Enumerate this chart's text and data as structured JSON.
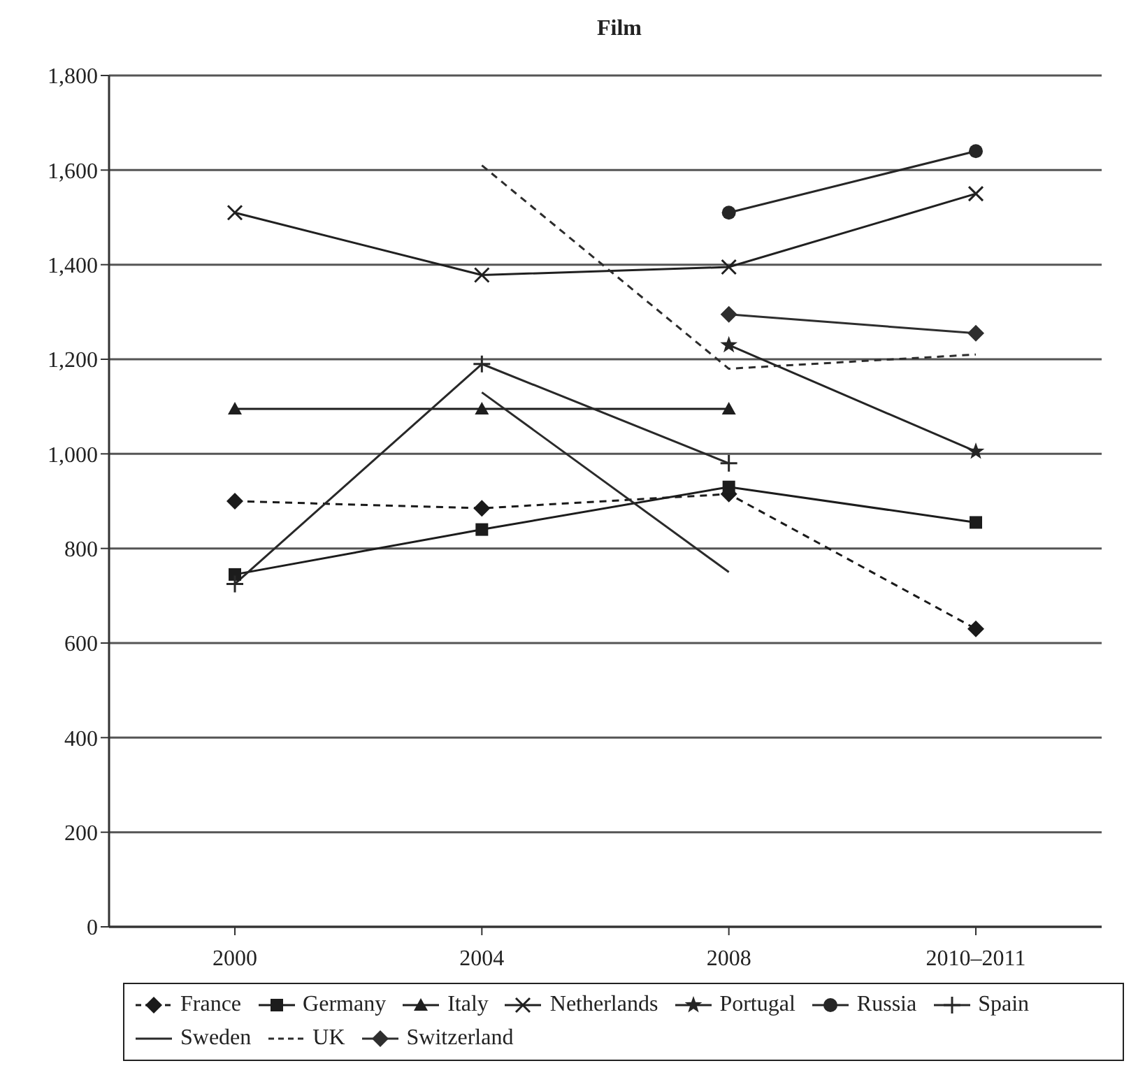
{
  "chart_data": {
    "type": "line",
    "title": "Film",
    "categories": [
      "2000",
      "2004",
      "2008",
      "2010–2011"
    ],
    "ylim": [
      0,
      1800
    ],
    "yticks": [
      0,
      200,
      400,
      600,
      800,
      {
        "value": 1000,
        "label": "1,000"
      },
      {
        "value": 1200,
        "label": "1,200"
      },
      {
        "value": 1400,
        "label": "1,400"
      },
      {
        "value": 1600,
        "label": "1,600"
      },
      {
        "value": 1800,
        "label": "1,800"
      }
    ],
    "grid": "y",
    "legend": "bottom",
    "series": [
      {
        "name": "France",
        "color": "#1a1a1a",
        "marker": "diamond",
        "line_style": "dashed",
        "values": [
          900,
          885,
          915,
          630
        ]
      },
      {
        "name": "Germany",
        "color": "#1c1c1c",
        "marker": "square",
        "line_style": "solid",
        "values": [
          745,
          840,
          930,
          855
        ]
      },
      {
        "name": "Italy",
        "color": "#1e1e1e",
        "marker": "triangle",
        "line_style": "solid",
        "values": [
          1095,
          1095,
          1095,
          null
        ]
      },
      {
        "name": "Netherlands",
        "color": "#202020",
        "marker": "cross",
        "line_style": "solid",
        "values": [
          1510,
          1378,
          1395,
          1550
        ]
      },
      {
        "name": "Portugal",
        "color": "#242424",
        "marker": "star",
        "line_style": "solid",
        "values": [
          null,
          null,
          1230,
          1005
        ]
      },
      {
        "name": "Russia",
        "color": "#262626",
        "marker": "circle",
        "line_style": "solid",
        "values": [
          null,
          null,
          1510,
          1640
        ]
      },
      {
        "name": "Spain",
        "color": "#282828",
        "marker": "plus",
        "line_style": "solid",
        "values": [
          725,
          1190,
          980,
          null
        ]
      },
      {
        "name": "Sweden",
        "color": "#2a2a2a",
        "marker": "none",
        "line_style": "solid",
        "values": [
          null,
          1130,
          750,
          null
        ]
      },
      {
        "name": "UK",
        "color": "#2c2c2c",
        "marker": "none",
        "line_style": "dashed",
        "values": [
          null,
          1610,
          1180,
          1210
        ]
      },
      {
        "name": "Switzerland",
        "color": "#2e2e2e",
        "marker": "diamond",
        "line_style": "solid",
        "values": [
          null,
          null,
          1295,
          1255
        ]
      }
    ]
  }
}
